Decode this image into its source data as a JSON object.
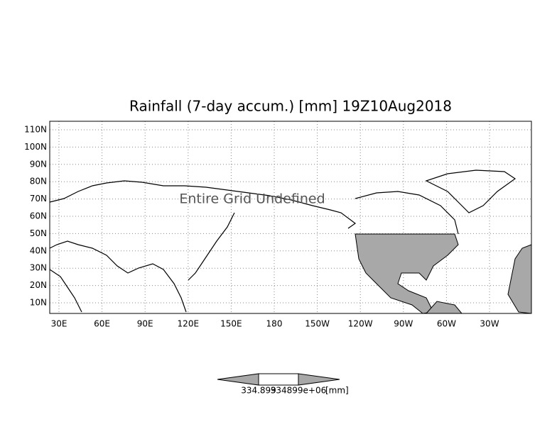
{
  "title": "Rainfall (7-day accum.) [mm] 19Z10Aug2018",
  "map": {
    "lat_labels": [
      "110N",
      "100N",
      "90N",
      "80N",
      "70N",
      "60N",
      "50N",
      "40N",
      "30N",
      "20N",
      "10N"
    ],
    "lon_labels": [
      "30E",
      "60E",
      "90E",
      "120E",
      "150E",
      "180",
      "150W",
      "120W",
      "90W",
      "60W",
      "30W"
    ],
    "annotation": "Entire Grid Undefined"
  },
  "colorbar": {
    "labels": [
      "334.899",
      "334899e+06"
    ],
    "unit": "[mm]"
  }
}
